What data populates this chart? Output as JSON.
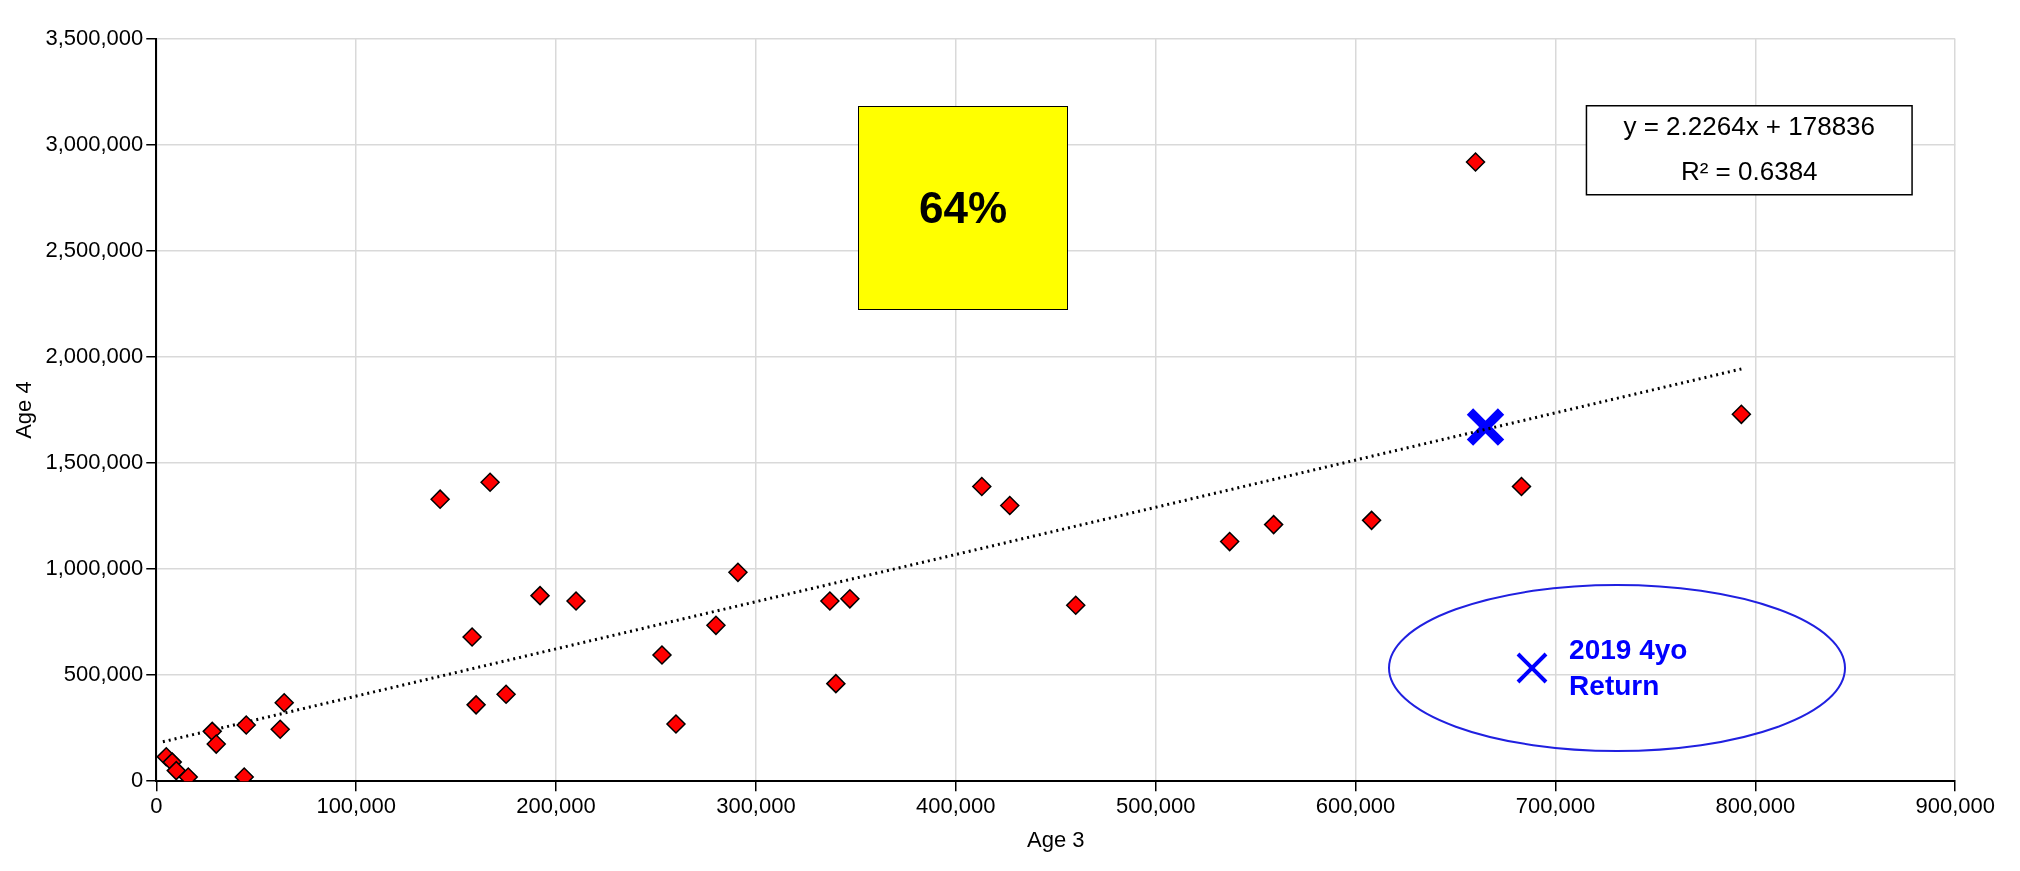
{
  "chart_data": {
    "type": "scatter",
    "xlabel": "Age 3",
    "ylabel": "Age 4",
    "xlim": [
      0,
      900000
    ],
    "xticks": [
      0,
      {
        "value": 100000,
        "label": "100,000"
      },
      {
        "value": 200000,
        "label": "200,000"
      },
      {
        "value": 300000,
        "label": "300,000"
      },
      {
        "value": 400000,
        "label": "400,000"
      },
      {
        "value": 500000,
        "label": "500,000"
      },
      {
        "value": 600000,
        "label": "600,000"
      },
      {
        "value": 700000,
        "label": "700,000"
      },
      {
        "value": 800000,
        "label": "800,000"
      },
      {
        "value": 900000,
        "label": "900,000"
      }
    ],
    "ylim": [
      0,
      3500000
    ],
    "yticks": [
      0,
      {
        "value": 500000,
        "label": "500,000"
      },
      {
        "value": 1000000,
        "label": "1,000,000"
      },
      {
        "value": 1500000,
        "label": "1,500,000"
      },
      {
        "value": 2000000,
        "label": "2,000,000"
      },
      {
        "value": 2500000,
        "label": "2,500,000"
      },
      {
        "value": 3000000,
        "label": "3,000,000"
      },
      {
        "value": 3500000,
        "label": "3,500,000"
      }
    ],
    "grid": true,
    "legend": "bottom right",
    "marker": "diamond",
    "annotations": [
      "64%",
      "y = 2.2264x + 178836",
      "R² = 0.6384"
    ],
    "series": [
      {
        "color": "#ff0000",
        "x": [
          5000,
          8000,
          10000,
          16000,
          28000,
          30000,
          44000,
          45000,
          62000,
          64000,
          142000,
          158000,
          160000,
          167000,
          175000,
          192000,
          210000,
          253000,
          260000,
          280000,
          291000,
          337000,
          340000,
          347000,
          413000,
          427000,
          460000,
          537000,
          559000,
          608000,
          660000,
          683000,
          793000
        ],
        "values": [
          115000,
          90000,
          50000,
          20000,
          235000,
          175000,
          20000,
          265000,
          245000,
          370000,
          1330000,
          680000,
          360000,
          1410000,
          410000,
          875000,
          850000,
          595000,
          270000,
          735000,
          985000,
          850000,
          460000,
          860000,
          1390000,
          1300000,
          830000,
          1130000,
          1210000,
          1230000,
          2920000,
          1390000,
          1730000
        ]
      },
      {
        "type": "line",
        "color": "#000000",
        "marker": "none",
        "line_style": "dotted",
        "x": [
          3300,
          793000
        ],
        "values": [
          186000,
          1944000
        ]
      },
      {
        "name": "2019 4yo Return",
        "color": "#0000ff",
        "marker": "cross",
        "x": [
          665000
        ],
        "values": [
          1670000
        ]
      }
    ]
  }
}
